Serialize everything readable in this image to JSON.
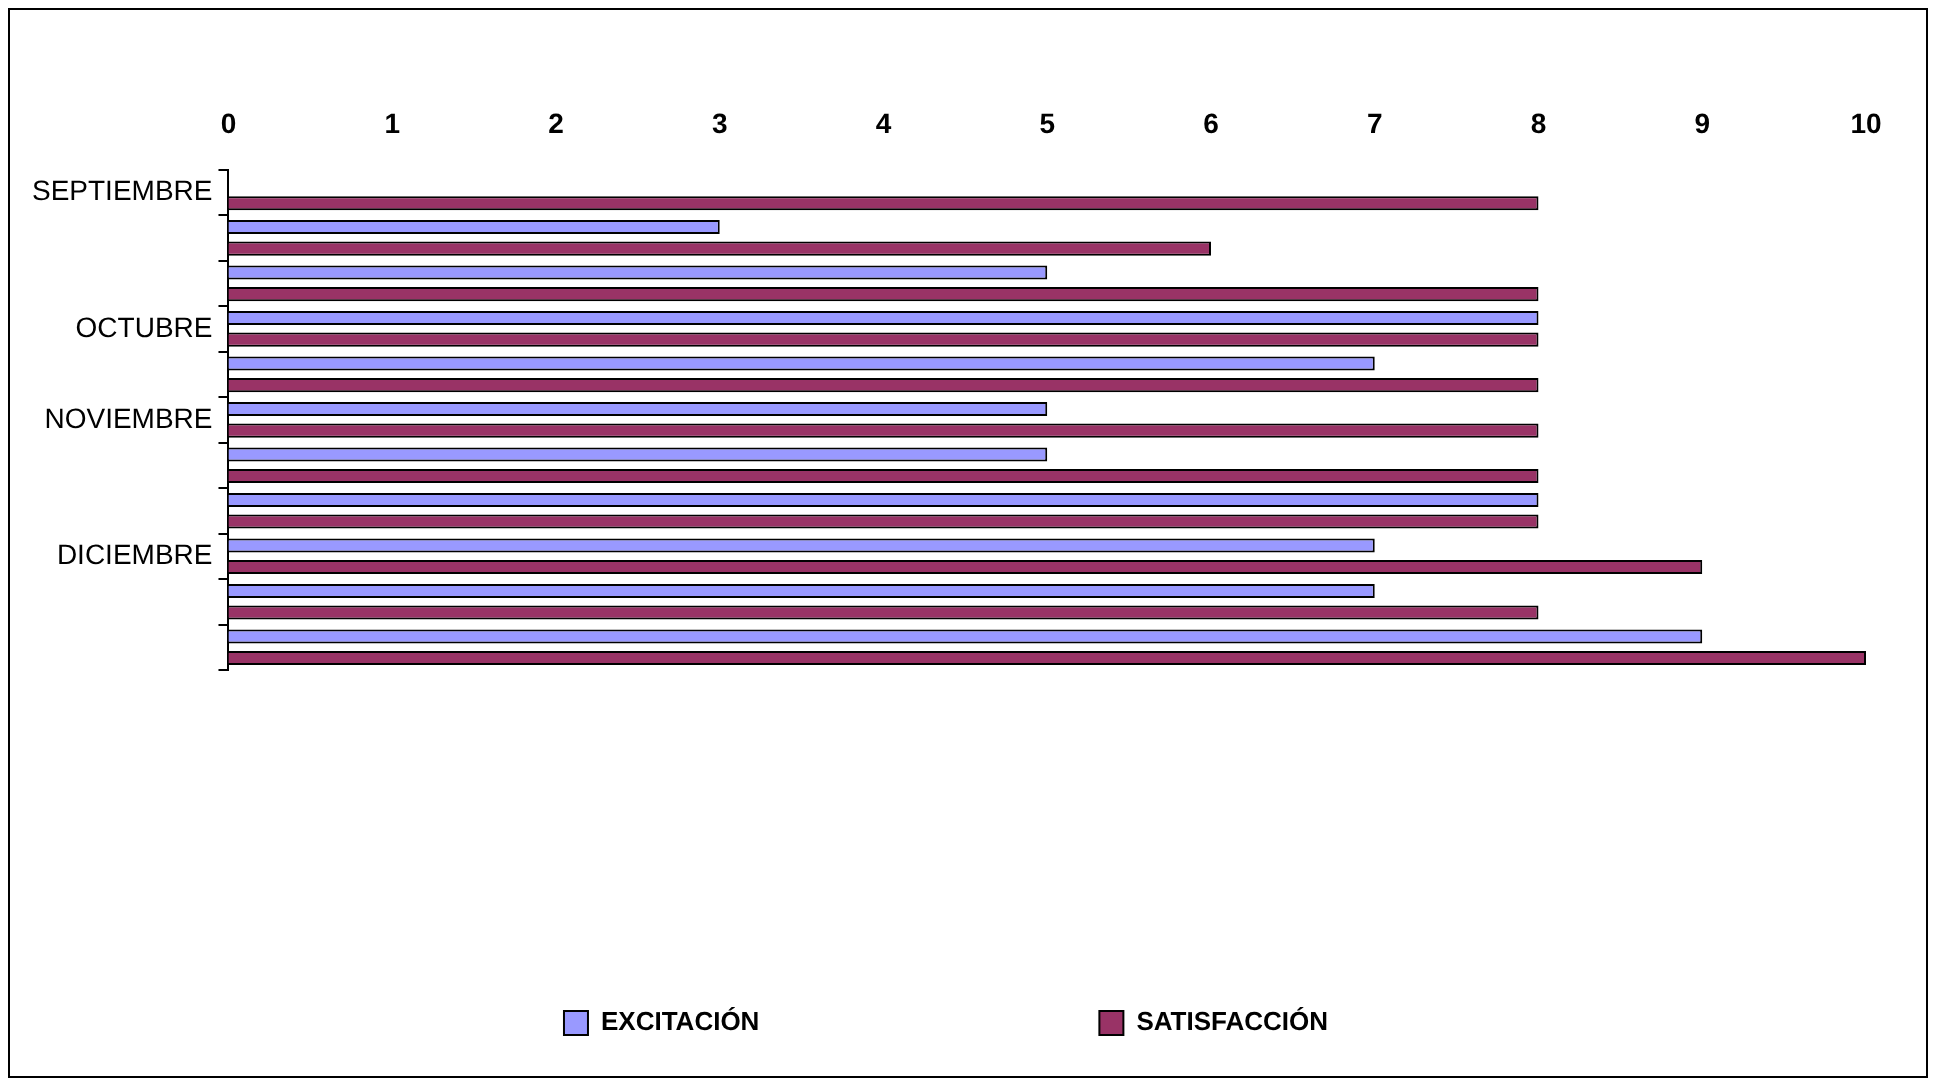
{
  "chart_data": {
    "type": "bar",
    "orientation": "horizontal",
    "categories": [
      "SEPTIEMBRE",
      null,
      null,
      "OCTUBRE",
      null,
      "NOVIEMBRE",
      null,
      null,
      "DICIEMBRE",
      null,
      null
    ],
    "series": [
      {
        "name": "EXCITACIÓN",
        "color": "#9999ff",
        "values": [
          null,
          3,
          5,
          8,
          7,
          5,
          5,
          8,
          7,
          7,
          9
        ]
      },
      {
        "name": "SATISFACCIÓN",
        "color": "#993366",
        "values": [
          8,
          6,
          8,
          8,
          8,
          8,
          8,
          8,
          9,
          8,
          10
        ]
      }
    ],
    "xlim": [
      0,
      10
    ],
    "xticks": [
      0,
      1,
      2,
      3,
      4,
      5,
      6,
      7,
      8,
      9,
      10
    ],
    "grid": false,
    "legend": "bottom"
  }
}
